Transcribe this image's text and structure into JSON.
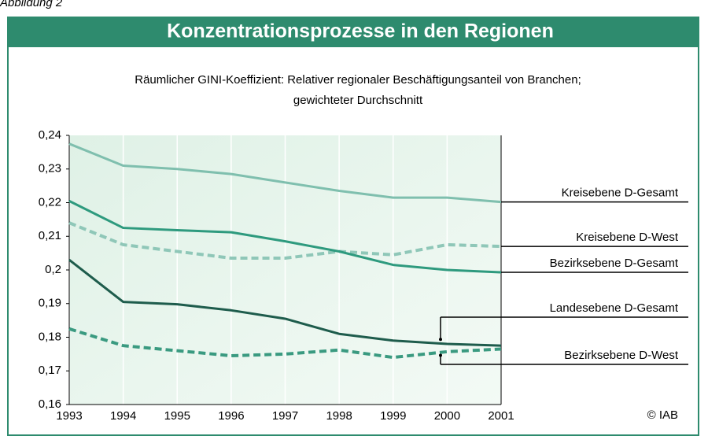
{
  "caption": "Abbildung 2",
  "chart_data": {
    "type": "line",
    "title": "Konzentrationsprozesse in den Regionen",
    "subtitle_lines": [
      "Räumlicher GINI-Koeffizient: Relativer regionaler Beschäftigungsanteil von Branchen;",
      "gewichteter Durchschnitt"
    ],
    "annotation": "© IAB",
    "x": [
      1993,
      1994,
      1995,
      1996,
      1997,
      1998,
      1999,
      2000,
      2001
    ],
    "xlim": [
      1993,
      2001
    ],
    "xticks": [
      1993,
      1994,
      1995,
      1996,
      1997,
      1998,
      1999,
      2000,
      2001
    ],
    "ylim": [
      0.16,
      0.24
    ],
    "yticks": [
      {
        "value": 0.16,
        "label": "0,16"
      },
      {
        "value": 0.17,
        "label": "0,17"
      },
      {
        "value": 0.18,
        "label": "0,18"
      },
      {
        "value": 0.19,
        "label": "0,19"
      },
      {
        "value": 0.2,
        "label": "0,2"
      },
      {
        "value": 0.21,
        "label": "0,21"
      },
      {
        "value": 0.22,
        "label": "0,22"
      },
      {
        "value": 0.23,
        "label": "0,23"
      },
      {
        "value": 0.24,
        "label": "0,24"
      }
    ],
    "grid": true,
    "series": [
      {
        "name": "Kreisebene D-Gesamt",
        "color": "#7fbfae",
        "dashed": false,
        "values": [
          0.2375,
          0.231,
          0.23,
          0.2285,
          0.226,
          0.2235,
          0.2215,
          0.2215,
          0.2202
        ]
      },
      {
        "name": "Kreisebene D-West",
        "color": "#8fc7b8",
        "dashed": true,
        "values": [
          0.214,
          0.2075,
          0.2055,
          0.2035,
          0.2035,
          0.2055,
          0.2045,
          0.2075,
          0.207
        ]
      },
      {
        "name": "Bezirksebene D-Gesamt",
        "color": "#2e9a7e",
        "dashed": false,
        "values": [
          0.2205,
          0.2125,
          0.2118,
          0.2112,
          0.2085,
          0.2055,
          0.2015,
          0.2,
          0.1993
        ]
      },
      {
        "name": "Landesebene D-Gesamt",
        "color": "#1e5c4c",
        "dashed": false,
        "values": [
          0.203,
          0.1905,
          0.1898,
          0.188,
          0.1855,
          0.181,
          0.179,
          0.178,
          0.1775
        ]
      },
      {
        "name": "Bezirksebene D-West",
        "color": "#3a9a80",
        "dashed": true,
        "values": [
          0.1825,
          0.1775,
          0.176,
          0.1745,
          0.175,
          0.1762,
          0.174,
          0.1757,
          0.1765
        ]
      }
    ]
  }
}
